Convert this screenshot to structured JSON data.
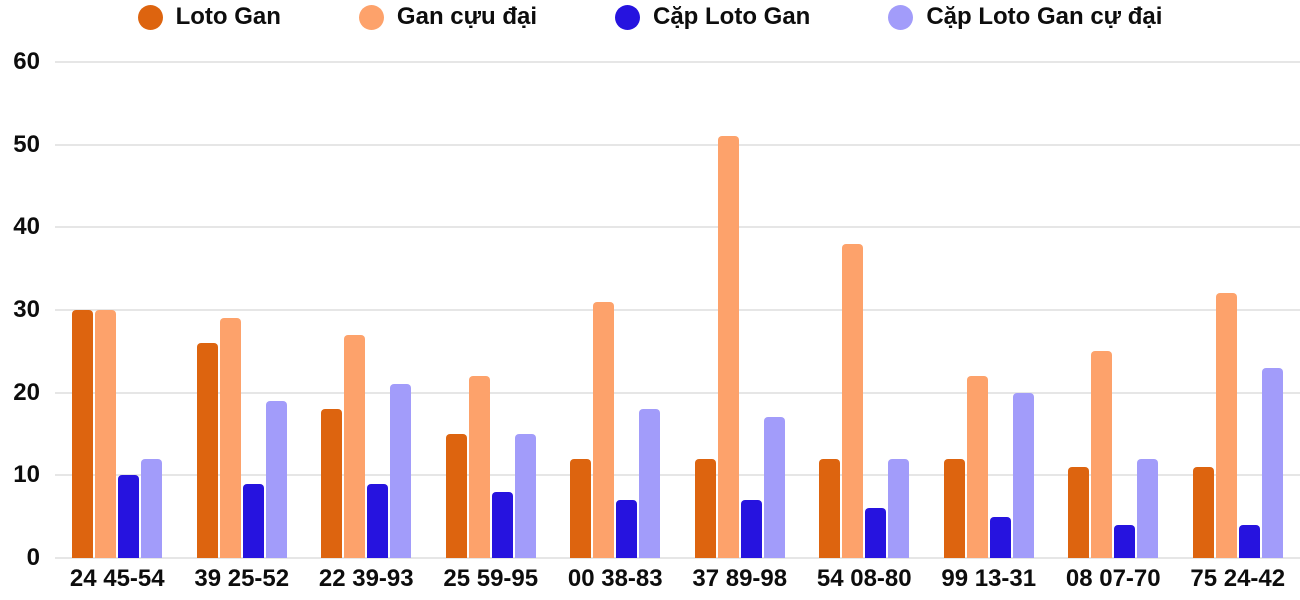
{
  "chart_data": {
    "type": "bar",
    "title": "",
    "xlabel": "",
    "ylabel": "",
    "categories": [
      "24 45-54",
      "39 25-52",
      "22 39-93",
      "25 59-95",
      "00 38-83",
      "37 89-98",
      "54 08-80",
      "99 13-31",
      "08 07-70",
      "75 24-42"
    ],
    "series": [
      {
        "name": "Loto Gan",
        "color": "#dd640f",
        "values": [
          30,
          26,
          18,
          15,
          12,
          12,
          12,
          12,
          11,
          11
        ]
      },
      {
        "name": "Gan cựu đại",
        "color": "#fda26b",
        "values": [
          30,
          29,
          27,
          22,
          31,
          51,
          38,
          22,
          25,
          32
        ]
      },
      {
        "name": "Cặp Loto Gan",
        "color": "#2613df",
        "values": [
          10,
          9,
          9,
          8,
          7,
          7,
          6,
          5,
          4,
          4
        ]
      },
      {
        "name": "Cặp Loto Gan cự đại",
        "color": "#a29cfa",
        "values": [
          12,
          19,
          21,
          15,
          18,
          17,
          12,
          20,
          12,
          23
        ]
      }
    ],
    "ylim": [
      0,
      60
    ],
    "yticks": [
      0,
      10,
      20,
      30,
      40,
      50,
      60
    ],
    "grid": "horizontal",
    "gridline_color": "#e6e6e6",
    "legend_position": "top",
    "text_color": "#0d0d0d",
    "background": "#ffffff"
  }
}
